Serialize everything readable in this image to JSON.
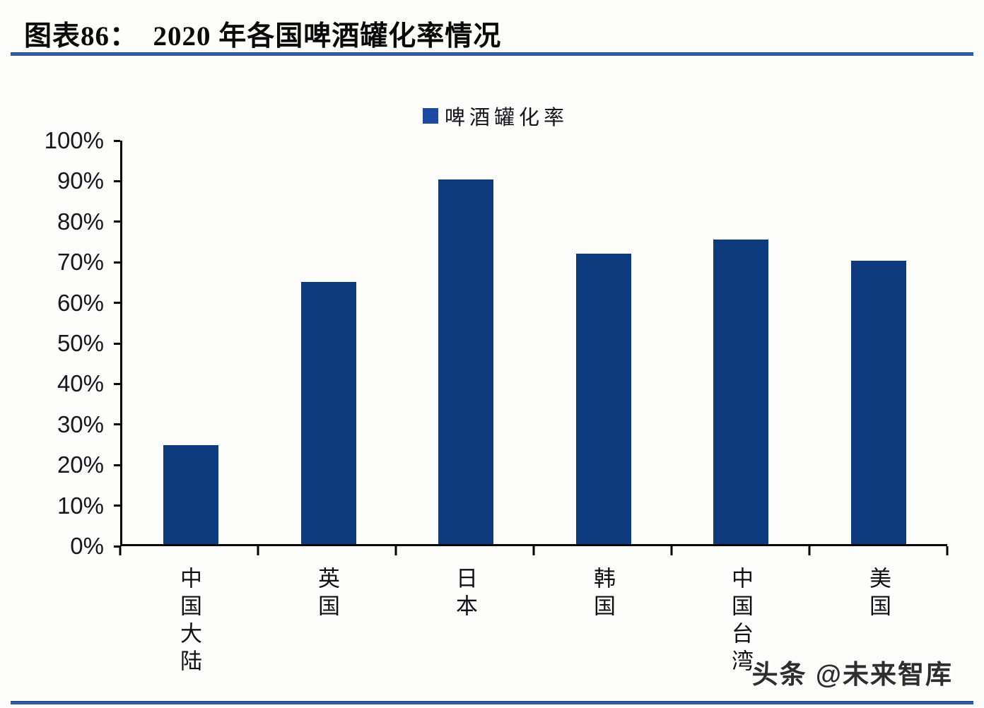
{
  "figure": {
    "title": "图表86：  2020 年各国啤酒罐化率情况",
    "watermark": "头条 @未来智库"
  },
  "legend": {
    "label": "啤酒罐化率"
  },
  "chart_data": {
    "type": "bar",
    "title": "2020 年各国啤酒罐化率情况",
    "categories": [
      "中国大陆",
      "英国",
      "日本",
      "韩国",
      "中国台湾",
      "美国"
    ],
    "values": [
      24.6,
      65,
      90.3,
      72,
      75.5,
      70.3
    ],
    "unit": "%",
    "xlabel": "",
    "ylabel": "",
    "ylim": [
      0,
      100
    ],
    "ytick_step": 10,
    "yticks": [
      "0%",
      "10%",
      "20%",
      "30%",
      "40%",
      "50%",
      "60%",
      "70%",
      "80%",
      "90%",
      "100%"
    ],
    "grid": false,
    "legend_entries": [
      "啤酒罐化率"
    ],
    "legend_position": "top-center"
  },
  "colors": {
    "bar": "#0d3b7d",
    "legend_swatch": "#1b4aa2",
    "rule": "#2e5ca8",
    "axis": "#000000"
  }
}
